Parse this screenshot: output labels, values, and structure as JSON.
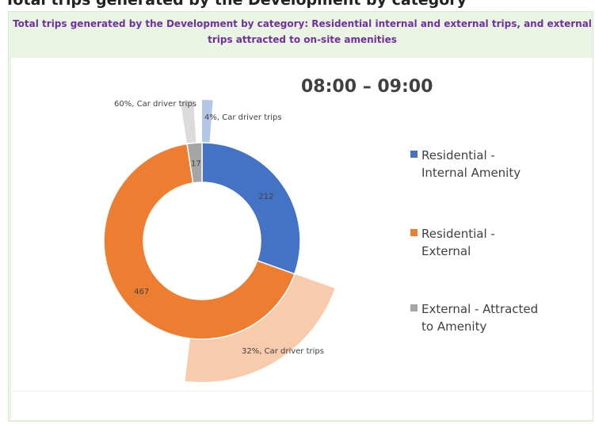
{
  "page_header_fragment": "Total trips generated by the Development by category",
  "chart_data": {
    "type": "pie",
    "title": "Total trips generated by the Development by category:   Residential internal and external trips, and external trips attracted to on-site amenities",
    "subtitle": "08:00 – 09:00",
    "legend_position": "right",
    "series": [
      {
        "name": "Residential - Internal Amenity",
        "value": 212,
        "value_label": "212",
        "color": "#4472c4",
        "car_driver_share": 0.04,
        "car_driver_label": "4%, Car driver trips",
        "car_driver_color": "#b4c7e7"
      },
      {
        "name": "Residential - External",
        "value": 467,
        "value_label": "467",
        "color": "#ed7d31",
        "car_driver_share": 0.32,
        "car_driver_label": "32%, Car driver trips",
        "car_driver_color": "#f8cbad"
      },
      {
        "name": "External - Attracted to Amenity",
        "value": 17,
        "value_label": "17",
        "color": "#a5a5a5",
        "car_driver_share": 0.6,
        "car_driver_label": "60%, Car driver trips",
        "car_driver_color": "#dbdbdb"
      }
    ],
    "legend": [
      {
        "line1": "Residential -",
        "line2": "Internal Amenity",
        "color": "#4472c4"
      },
      {
        "line1": "Residential -",
        "line2": "External",
        "color": "#ed7d31"
      },
      {
        "line1": "External - Attracted",
        "line2": "to Amenity",
        "color": "#a5a5a5"
      }
    ]
  }
}
